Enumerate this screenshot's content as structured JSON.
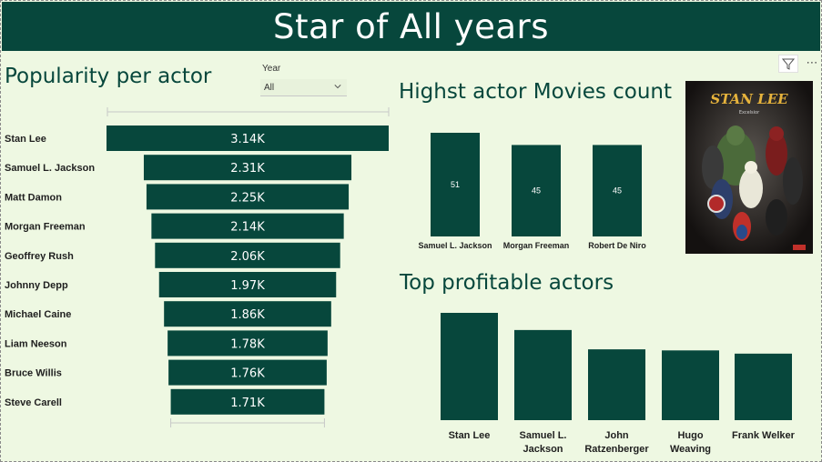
{
  "header": {
    "title": "Star of All years"
  },
  "popularity": {
    "title": "Popularity per actor",
    "slicer": {
      "label": "Year",
      "value": "All"
    }
  },
  "movies_count": {
    "title": "Highst actor Movies count"
  },
  "profitable": {
    "title": "Top profitable actors"
  },
  "poster": {
    "text": "STAN LEE",
    "subtitle": "Excelsior"
  },
  "icons": {
    "filter": "filter-icon",
    "more": "more-options-icon"
  },
  "colors": {
    "bar": "#07473c",
    "background": "#eef8e2",
    "header": "#07473c"
  },
  "chart_data": [
    {
      "type": "bar",
      "orientation": "horizontal-funnel",
      "title": "Popularity per actor",
      "categories": [
        "Stan Lee",
        "Samuel L. Jackson",
        "Matt Damon",
        "Morgan Freeman",
        "Geoffrey Rush",
        "Johnny Depp",
        "Michael Caine",
        "Liam Neeson",
        "Bruce Willis",
        "Steve Carell"
      ],
      "values": [
        3140,
        2310,
        2250,
        2140,
        2060,
        1970,
        1860,
        1780,
        1760,
        1710
      ],
      "labels": [
        "3.14K",
        "2.31K",
        "2.25K",
        "2.14K",
        "2.06K",
        "1.97K",
        "1.86K",
        "1.78K",
        "1.76K",
        "1.71K"
      ]
    },
    {
      "type": "bar",
      "title": "Highst actor Movies count",
      "categories": [
        "Samuel L. Jackson",
        "Morgan Freeman",
        "Robert De Niro"
      ],
      "values": [
        51,
        45,
        45
      ],
      "ylim": [
        0,
        51
      ]
    },
    {
      "type": "bar",
      "title": "Top profitable actors",
      "categories": [
        [
          "Stan Lee"
        ],
        [
          "Samuel L.",
          "Jackson"
        ],
        [
          "John",
          "Ratzenberger"
        ],
        [
          "Hugo",
          "Weaving"
        ],
        [
          "Frank Welker"
        ]
      ],
      "values": [
        100,
        84,
        66,
        65,
        62
      ],
      "ylim": [
        0,
        100
      ]
    }
  ]
}
